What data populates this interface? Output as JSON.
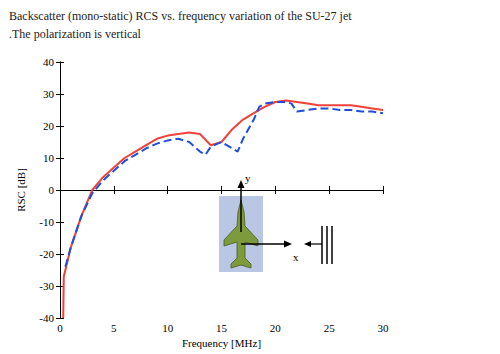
{
  "chart_data": {
    "type": "line",
    "title": "Backscatter (mono-static) RCS vs. frequency variation of the SU-27 jet",
    "subtitle": ".The polarization is vertical",
    "x_label": "Frequency [MHz]",
    "y_label": "RSC [dB]",
    "xlim": [
      0,
      30
    ],
    "xticks": [
      0,
      5,
      10,
      15,
      20,
      25,
      30
    ],
    "ylim": [
      -40,
      40
    ],
    "yticks": [
      -40,
      -30,
      -20,
      -10,
      0,
      10,
      20,
      30,
      40
    ],
    "grid": false,
    "annotations": [
      "y",
      "x"
    ],
    "series": [
      {
        "color": "#f0413a",
        "line_style": "solid",
        "x": [
          0.3,
          0.35,
          0.5,
          1,
          2,
          3,
          4,
          5,
          6,
          7,
          8,
          9,
          10,
          11,
          12,
          13,
          14,
          15,
          16,
          17,
          18,
          19,
          20,
          21,
          22,
          23,
          24,
          25,
          26,
          27,
          28,
          29,
          30
        ],
        "values": [
          -40,
          -27,
          -25,
          -18,
          -8,
          0,
          4,
          7,
          10,
          12,
          14,
          16,
          17,
          17.5,
          18,
          17.5,
          14,
          15,
          19,
          22,
          24,
          26,
          27.5,
          28,
          27.5,
          27,
          26.5,
          26.5,
          26.5,
          26.5,
          26,
          25.5,
          25
        ]
      },
      {
        "color": "#1f4fd8",
        "line_style": "dashed",
        "x": [
          0.5,
          1,
          2,
          3,
          4,
          5,
          6,
          7,
          8,
          9,
          10,
          11,
          12,
          13,
          13.5,
          14,
          15,
          16,
          16.5,
          17,
          18,
          18.5,
          19,
          20,
          21,
          21.5,
          22,
          23,
          24,
          25,
          26,
          27,
          28,
          29,
          30
        ],
        "values": [
          -24,
          -18,
          -8,
          -1,
          3,
          6,
          9,
          11,
          13,
          14.5,
          15.5,
          16,
          15,
          12,
          11,
          13.5,
          15,
          13,
          12,
          16,
          22,
          26,
          27,
          27.5,
          27.5,
          27,
          24.5,
          25,
          25.5,
          25.5,
          25,
          25,
          24.5,
          24.5,
          24
        ]
      }
    ]
  }
}
